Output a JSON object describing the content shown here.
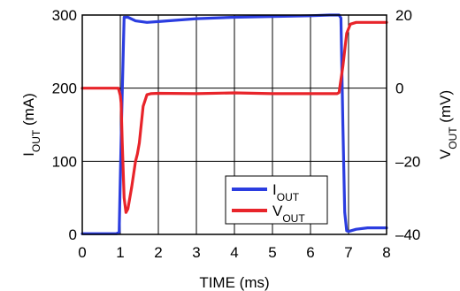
{
  "chart_data": {
    "type": "line",
    "xlabel": "TIME (ms)",
    "xlim": [
      0,
      8
    ],
    "x_ticks": [
      "0",
      "1",
      "2",
      "3",
      "4",
      "5",
      "6",
      "7",
      "8"
    ],
    "y_left": {
      "label_main": "I",
      "label_sub": "OUT",
      "label_unit": " (mA)",
      "lim": [
        0,
        300
      ],
      "ticks": [
        "0",
        "100",
        "200",
        "300"
      ]
    },
    "y_right": {
      "label_main": "V",
      "label_sub": "OUT",
      "label_unit": " (mV)",
      "lim": [
        -40,
        20
      ],
      "ticks": [
        "20",
        "0",
        "–20",
        "–40"
      ]
    },
    "grid": true,
    "legend_placement": "bottom-right",
    "series": [
      {
        "name_main": "I",
        "name_sub": "OUT",
        "color": "#2b3de0",
        "axis": "left",
        "x": [
          0,
          0.5,
          0.9,
          0.97,
          1.03,
          1.1,
          1.2,
          1.4,
          1.7,
          2.0,
          3.0,
          4.0,
          5.0,
          6.0,
          6.5,
          6.75,
          6.8,
          6.85,
          6.9,
          6.95,
          7.0,
          7.2,
          7.5,
          7.8,
          8.0
        ],
        "values": [
          1,
          1,
          1,
          3,
          150,
          297,
          297,
          292,
          290,
          291,
          295,
          297,
          298,
          299,
          300,
          300,
          296,
          150,
          30,
          5,
          4,
          7,
          9,
          9,
          9
        ]
      },
      {
        "name_main": "V",
        "name_sub": "OUT",
        "color": "#e8242a",
        "axis": "right",
        "x": [
          0,
          0.5,
          0.95,
          1.0,
          1.02,
          1.05,
          1.1,
          1.15,
          1.2,
          1.3,
          1.4,
          1.45,
          1.5,
          1.6,
          1.7,
          1.8,
          2.0,
          3.0,
          4.0,
          5.0,
          6.0,
          6.7,
          6.75,
          6.85,
          6.95,
          7.05,
          7.2,
          7.5,
          8.0
        ],
        "values": [
          0,
          0,
          0,
          -2,
          -4,
          -15,
          -30,
          -34,
          -33,
          -27,
          -20,
          -18,
          -15,
          -5,
          -1.8,
          -1.5,
          -1.4,
          -1.5,
          -1.3,
          -1.5,
          -1.5,
          -1.5,
          -1.2,
          6,
          15,
          17.5,
          18,
          18,
          18
        ]
      }
    ]
  }
}
